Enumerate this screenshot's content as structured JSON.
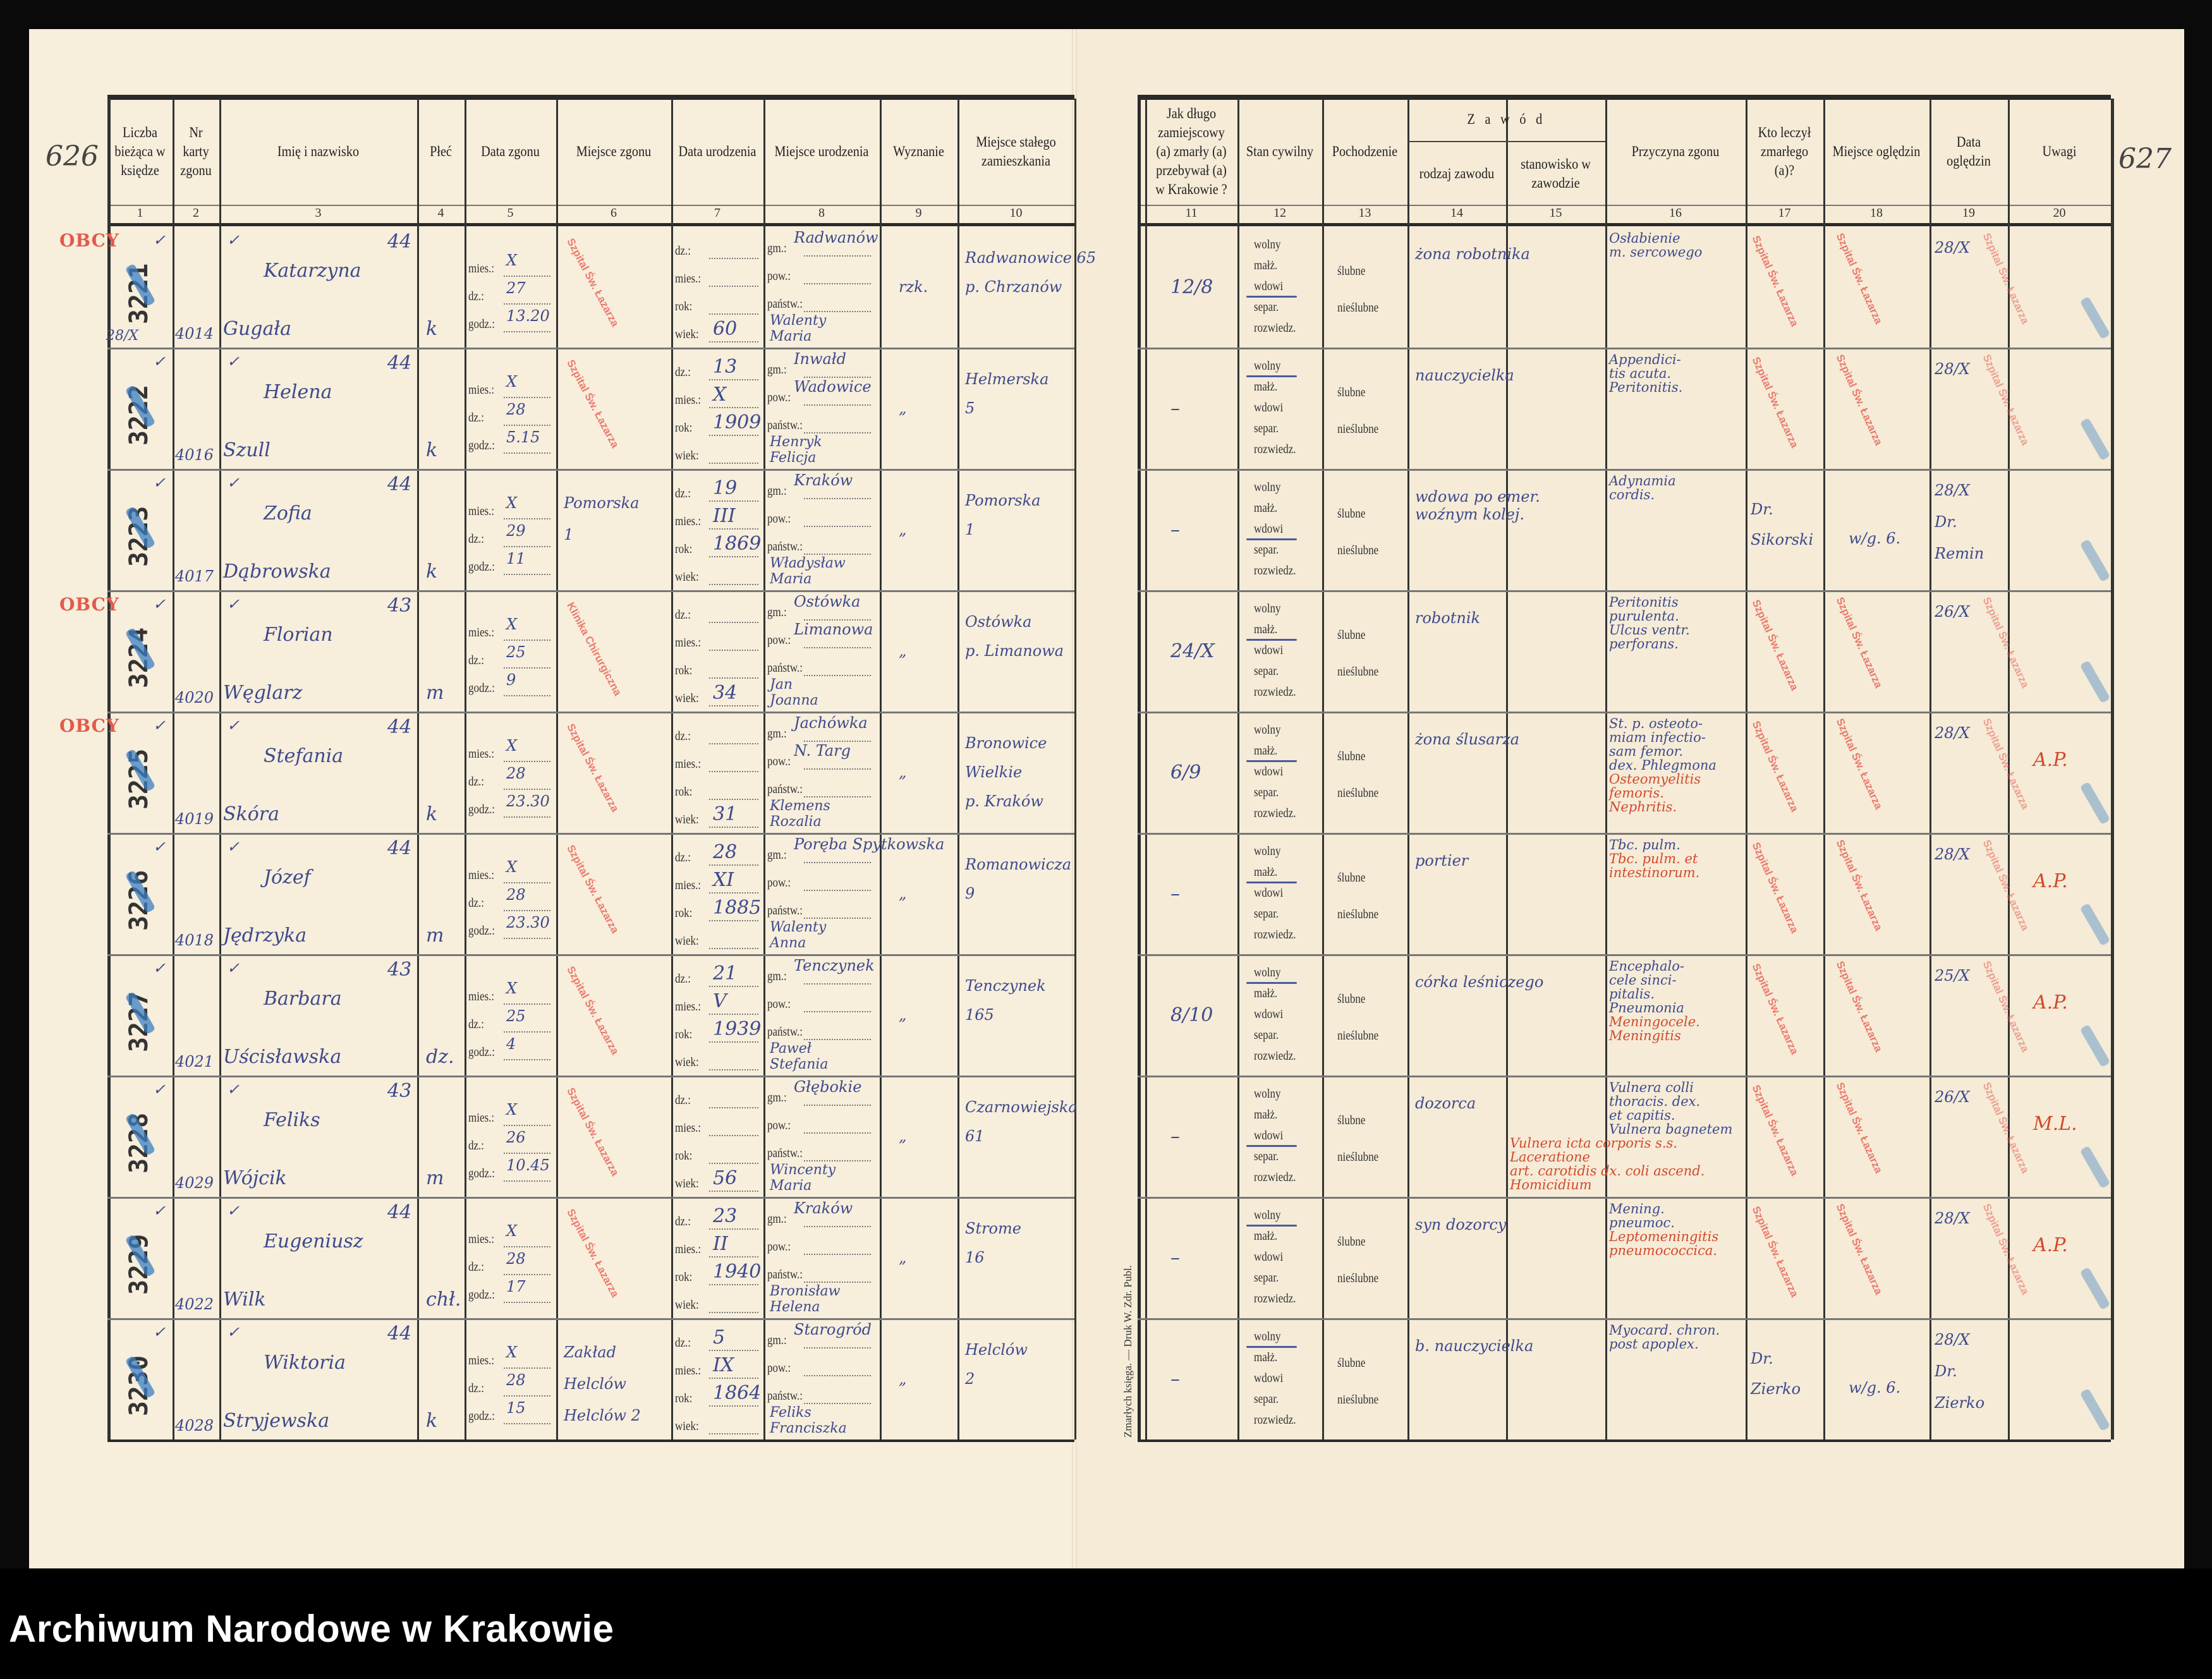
{
  "archive_label": "Archiwum Narodowe w Krakowie",
  "page_numbers": {
    "left": "626",
    "right": "627"
  },
  "printer_note": "Zmarłych księga. — Druk W. Zdr. Publ.",
  "colors": {
    "ink_blue": "#3d4a8c",
    "ink_red": "#d24a2c",
    "stamp_red": "#e8544a",
    "paper": "#f6ecd9"
  },
  "headers_left": [
    {
      "num": "1",
      "label": "Liczba bieżąca w księdze"
    },
    {
      "num": "2",
      "label": "Nr karty zgonu"
    },
    {
      "num": "3",
      "label": "Imię i nazwisko"
    },
    {
      "num": "4",
      "label": "Płeć"
    },
    {
      "num": "5",
      "label": "Data zgonu"
    },
    {
      "num": "6",
      "label": "Miejsce zgonu"
    },
    {
      "num": "7",
      "label": "Data urodzenia"
    },
    {
      "num": "8",
      "label": "Miejsce urodzenia"
    },
    {
      "num": "9",
      "label": "Wyznanie"
    },
    {
      "num": "10",
      "label": "Miejsce stałego zamieszkania"
    }
  ],
  "headers_right": [
    {
      "num": "11",
      "label": "Jak długo zamiejscowy (a) zmarły (a) przebywał (a) w Krakowie ?"
    },
    {
      "num": "12",
      "label": "Stan cywilny"
    },
    {
      "num": "13",
      "label": "Pochodzenie"
    },
    {
      "num": "14",
      "label": "rodzaj zawodu"
    },
    {
      "num": "15",
      "label": "stanowisko w zawodzie"
    },
    {
      "num": "16",
      "label": "Przyczyna zgonu"
    },
    {
      "num": "17",
      "label": "Kto leczył zmarłego (a)?"
    },
    {
      "num": "18",
      "label": "Miejsce oględzin"
    },
    {
      "num": "19",
      "label": "Data oględzin"
    },
    {
      "num": "20",
      "label": "Uwagi"
    }
  ],
  "zawod_header": "Z a w ó d",
  "labels": {
    "death": [
      "mies.:",
      "dz.:",
      "godz.:"
    ],
    "birth": [
      "dz.:",
      "mies.:",
      "rok:",
      "wiek:"
    ],
    "birthplace": [
      "gm.:",
      "pow.:",
      "państw.:"
    ],
    "civil": [
      "wolny",
      "małż.",
      "wdowi",
      "separ.",
      "rozwiedz."
    ],
    "origin": [
      "ślubne",
      "nieślubne"
    ]
  },
  "stamps": {
    "hospital": "Szpital Św. Łazarza",
    "clinic": "Klinika Chirurgiczna",
    "foreign": "OBCY"
  },
  "rows": [
    {
      "entry": "3221",
      "card": "4014",
      "first": "Katarzyna",
      "surname": "Gugała",
      "age": "44",
      "sex": "k",
      "obcy": true,
      "note": "28/X",
      "death": [
        "X",
        "27",
        "13.20"
      ],
      "death_place": [],
      "death_stamp": "hospital",
      "birth": [
        "",
        "",
        "",
        "60"
      ],
      "birthplace": [
        "Radwanów",
        "",
        ""
      ],
      "parents": [
        "Walenty",
        "Maria"
      ],
      "religion": "rzk.",
      "residence": [
        "Radwanowice 65",
        "p. Chrzanów"
      ],
      "duration": "12/8",
      "civil": 2,
      "occupation": "żona robotnika",
      "cause": [
        "Osłabienie",
        "m. sercowego"
      ],
      "cause_red": [],
      "treated_by": [],
      "exam_place": "",
      "exam_date": [
        "28/X"
      ],
      "remarks": "",
      "exam_stamps": true
    },
    {
      "entry": "3222",
      "card": "4016",
      "first": "Helena",
      "surname": "Szull",
      "age": "44",
      "sex": "k",
      "obcy": false,
      "note": "",
      "death": [
        "X",
        "28",
        "5.15"
      ],
      "death_place": [],
      "death_stamp": "hospital",
      "birth": [
        "13",
        "X",
        "1909",
        ""
      ],
      "birthplace": [
        "Inwałd",
        "Wadowice",
        ""
      ],
      "parents": [
        "Henryk",
        "Felicja"
      ],
      "religion": "„",
      "residence": [
        "Helmerska",
        "5"
      ],
      "duration": "–",
      "civil": 0,
      "occupation": "nauczycielka",
      "cause": [
        "Appendici-",
        "tis acuta.",
        "Peritonitis."
      ],
      "cause_red": [],
      "treated_by": [],
      "exam_place": "",
      "exam_date": [
        "28/X"
      ],
      "remarks": "",
      "exam_stamps": true
    },
    {
      "entry": "3223",
      "card": "4017",
      "first": "Zofia",
      "surname": "Dąbrowska",
      "age": "44",
      "sex": "k",
      "obcy": false,
      "note": "",
      "death": [
        "X",
        "29",
        "11"
      ],
      "death_place": [
        "Pomorska",
        "1"
      ],
      "death_stamp": "",
      "birth": [
        "19",
        "III",
        "1869",
        ""
      ],
      "birthplace": [
        "Kraków",
        "",
        ""
      ],
      "parents": [
        "Władysław",
        "Maria"
      ],
      "religion": "„",
      "residence": [
        "Pomorska",
        "1"
      ],
      "duration": "–",
      "civil": 2,
      "occupation": "wdowa po emer. woźnym kolej.",
      "cause": [
        "Adynamia",
        "cordis."
      ],
      "cause_red": [],
      "treated_by": [
        "Dr.",
        "Sikorski"
      ],
      "exam_place": "w/g. 6.",
      "exam_date": [
        "28/X",
        "Dr.",
        "Remin"
      ],
      "remarks": "",
      "exam_stamps": false
    },
    {
      "entry": "3224",
      "card": "4020",
      "first": "Florian",
      "surname": "Węglarz",
      "age": "43",
      "sex": "m",
      "obcy": true,
      "note": "",
      "death": [
        "X",
        "25",
        "9"
      ],
      "death_place": [],
      "death_stamp": "clinic",
      "birth": [
        "",
        "",
        "",
        "34"
      ],
      "birthplace": [
        "Ostówka",
        "Limanowa",
        ""
      ],
      "parents": [
        "Jan",
        "Joanna"
      ],
      "religion": "„",
      "residence": [
        "Ostówka",
        "p. Limanowa"
      ],
      "duration": "24/X",
      "civil": 1,
      "occupation": "robotnik",
      "cause": [
        "Peritonitis",
        "purulenta.",
        "Ulcus ventr.",
        "perforans."
      ],
      "cause_red": [],
      "treated_by": [],
      "exam_place": "",
      "exam_date": [
        "26/X"
      ],
      "remarks": "",
      "exam_stamps": true
    },
    {
      "entry": "3225",
      "card": "4019",
      "first": "Stefania",
      "surname": "Skóra",
      "age": "44",
      "sex": "k",
      "obcy": true,
      "note": "",
      "death": [
        "X",
        "28",
        "23.30"
      ],
      "death_place": [],
      "death_stamp": "hospital",
      "birth": [
        "",
        "",
        "",
        "31"
      ],
      "birthplace": [
        "Jachówka",
        "N. Targ",
        ""
      ],
      "parents": [
        "Klemens",
        "Rozalia"
      ],
      "religion": "„",
      "residence": [
        "Bronowice",
        "Wielkie",
        "p. Kraków"
      ],
      "duration": "6/9",
      "civil": 1,
      "occupation": "żona ślusarza",
      "cause": [
        "St. p. osteoto-",
        "miam infectio-",
        "sam femor.",
        "dex. Phlegmona"
      ],
      "cause_red": [
        "Osteomyelitis femoris.",
        "Nephritis."
      ],
      "treated_by": [],
      "exam_place": "",
      "exam_date": [
        "28/X"
      ],
      "remarks": "A.P.",
      "exam_stamps": true
    },
    {
      "entry": "3226",
      "card": "4018",
      "first": "Józef",
      "surname": "Jędrzyka",
      "age": "44",
      "sex": "m",
      "obcy": false,
      "note": "",
      "death": [
        "X",
        "28",
        "23.30"
      ],
      "death_place": [],
      "death_stamp": "hospital",
      "birth": [
        "28",
        "XI",
        "1885",
        ""
      ],
      "birthplace": [
        "Poręba Spytkowska",
        "",
        ""
      ],
      "parents": [
        "Walenty",
        "Anna"
      ],
      "religion": "„",
      "residence": [
        "Romanowicza",
        "9"
      ],
      "duration": "–",
      "civil": 1,
      "occupation": "portier",
      "cause": [
        "Tbc. pulm."
      ],
      "cause_red": [
        "Tbc. pulm. et",
        "intestinorum."
      ],
      "treated_by": [],
      "exam_place": "",
      "exam_date": [
        "28/X"
      ],
      "remarks": "A.P.",
      "exam_stamps": true
    },
    {
      "entry": "3227",
      "card": "4021",
      "first": "Barbara",
      "surname": "Uścisławska",
      "age": "43",
      "sex": "dz.",
      "obcy": false,
      "note": "",
      "death": [
        "X",
        "25",
        "4"
      ],
      "death_place": [],
      "death_stamp": "hospital",
      "birth": [
        "21",
        "V",
        "1939",
        ""
      ],
      "birthplace": [
        "Tenczynek",
        "",
        ""
      ],
      "parents": [
        "Paweł",
        "Stefania"
      ],
      "religion": "„",
      "residence": [
        "Tenczynek",
        "165"
      ],
      "duration": "8/10",
      "civil": 0,
      "occupation": "córka leśniczego",
      "cause": [
        "Encephalo-",
        "cele sinci-",
        "pitalis.",
        "Pneumonia"
      ],
      "cause_red": [
        "Meningocele. Meningitis"
      ],
      "treated_by": [],
      "exam_place": "",
      "exam_date": [
        "25/X"
      ],
      "remarks": "A.P.",
      "exam_stamps": true
    },
    {
      "entry": "3228",
      "card": "4029",
      "first": "Feliks",
      "surname": "Wójcik",
      "age": "43",
      "sex": "m",
      "obcy": false,
      "note": "",
      "death": [
        "X",
        "26",
        "10.45"
      ],
      "death_place": [],
      "death_stamp": "hospital",
      "birth": [
        "",
        "",
        "",
        "56"
      ],
      "birthplace": [
        "Głębokie",
        "",
        ""
      ],
      "parents": [
        "Wincenty",
        "Maria"
      ],
      "religion": "„",
      "residence": [
        "Czarnowiejska",
        "61"
      ],
      "duration": "–",
      "civil": 2,
      "occupation": "dozorca",
      "cause": [
        "Vulnera colli",
        "thoracis. dex.",
        "et capitis.",
        "Vulnera bagnetem"
      ],
      "cause_red": [
        "Vulnera icta corporis s.s. Laceratione",
        "art. carotidis dx. coli ascend.",
        "Homicidium"
      ],
      "treated_by": [],
      "exam_place": "",
      "exam_date": [
        "26/X"
      ],
      "remarks": "M.L.",
      "exam_stamps": true
    },
    {
      "entry": "3229",
      "card": "4022",
      "first": "Eugeniusz",
      "surname": "Wilk",
      "age": "44",
      "sex": "chł.",
      "obcy": false,
      "note": "",
      "death": [
        "X",
        "28",
        "17"
      ],
      "death_place": [],
      "death_stamp": "hospital",
      "birth": [
        "23",
        "II",
        "1940",
        ""
      ],
      "birthplace": [
        "Kraków",
        "",
        ""
      ],
      "parents": [
        "Bronisław",
        "Helena"
      ],
      "religion": "„",
      "residence": [
        "Strome",
        "16"
      ],
      "duration": "–",
      "civil": 0,
      "occupation": "syn dozorcy",
      "cause": [
        "Mening.",
        "pneumoc."
      ],
      "cause_red": [
        "Leptomeningitis",
        "pneumococcica."
      ],
      "treated_by": [],
      "exam_place": "",
      "exam_date": [
        "28/X"
      ],
      "remarks": "A.P.",
      "exam_stamps": true
    },
    {
      "entry": "3230",
      "card": "4028",
      "first": "Wiktoria",
      "surname": "Stryjewska",
      "age": "44",
      "sex": "k",
      "obcy": false,
      "note": "",
      "death": [
        "X",
        "28",
        "15"
      ],
      "death_place": [
        "Zakład",
        "Helclów",
        "Helclów 2"
      ],
      "death_stamp": "",
      "birth": [
        "5",
        "IX",
        "1864",
        ""
      ],
      "birthplace": [
        "Starogród",
        "",
        ""
      ],
      "parents": [
        "Feliks",
        "Franciszka"
      ],
      "religion": "„",
      "residence": [
        "Helclów",
        "2"
      ],
      "duration": "–",
      "civil": 0,
      "occupation": "b. nauczycielka",
      "cause": [
        "Myocard. chron.",
        "post apoplex."
      ],
      "cause_red": [],
      "treated_by": [
        "Dr.",
        "Zierko"
      ],
      "exam_place": "w/g. 6.",
      "exam_date": [
        "28/X",
        "Dr.",
        "Zierko"
      ],
      "remarks": "",
      "exam_stamps": false
    }
  ]
}
